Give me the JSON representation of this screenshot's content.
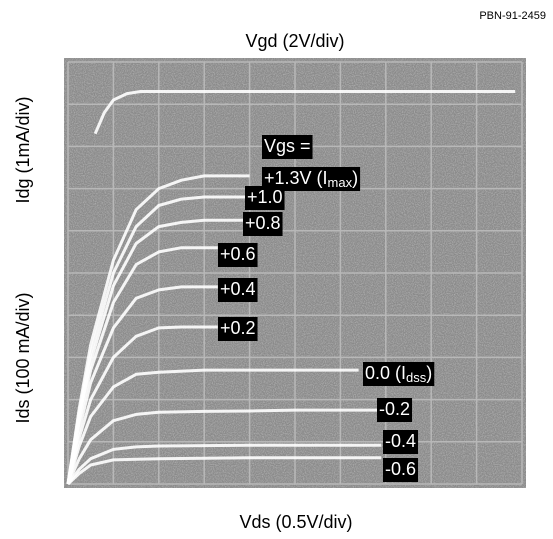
{
  "chart_data": {
    "type": "line",
    "code": "PBN-91-2459",
    "top_axis_label": "Vgd (2V/div)",
    "y_axis_label_upper": "Idg (1mA/div)",
    "y_axis_label_lower": "Ids (100 mA/div)",
    "x_axis_label": "Vds (0.5V/div)",
    "legend_title": "Vgs =",
    "series": [
      {
        "name": "+1.3V (I",
        "name_sub": "max",
        "name_end": ")",
        "color": "#ffffff",
        "x": [
          0,
          0.25,
          0.5,
          1,
          1.5,
          2,
          2.5,
          3,
          4
        ],
        "values": [
          0,
          1.8,
          3.3,
          5.3,
          6.5,
          7.0,
          7.2,
          7.3,
          7.3
        ]
      },
      {
        "name": "+1.0",
        "color": "#ffffff",
        "x": [
          0,
          0.25,
          0.5,
          1,
          1.5,
          2,
          2.5,
          3,
          4
        ],
        "values": [
          0,
          1.7,
          3.1,
          5.0,
          6.1,
          6.6,
          6.75,
          6.8,
          6.8
        ]
      },
      {
        "name": "+0.8",
        "color": "#ffffff",
        "x": [
          0,
          0.25,
          0.5,
          1,
          1.5,
          2,
          2.5,
          3,
          4
        ],
        "values": [
          0,
          1.6,
          2.9,
          4.7,
          5.7,
          6.1,
          6.2,
          6.25,
          6.25
        ]
      },
      {
        "name": "+0.6",
        "color": "#ffffff",
        "x": [
          0,
          0.25,
          0.5,
          1,
          1.5,
          2,
          2.5,
          3.3
        ],
        "values": [
          0,
          1.5,
          2.7,
          4.3,
          5.2,
          5.5,
          5.6,
          5.6
        ]
      },
      {
        "name": "+0.4",
        "color": "#ffffff",
        "x": [
          0,
          0.25,
          0.5,
          1,
          1.5,
          2,
          2.5,
          3.3
        ],
        "values": [
          0,
          1.3,
          2.4,
          3.7,
          4.4,
          4.6,
          4.67,
          4.67
        ]
      },
      {
        "name": "+0.2",
        "color": "#ffffff",
        "x": [
          0,
          0.25,
          0.5,
          1,
          1.5,
          2,
          2.5,
          3.3
        ],
        "values": [
          0,
          1.1,
          2.0,
          3.0,
          3.5,
          3.7,
          3.72,
          3.72
        ]
      },
      {
        "name": "0.0 (I",
        "name_sub": "dss",
        "name_end": ")",
        "color": "#ffffff",
        "x": [
          0,
          0.25,
          0.5,
          1,
          1.5,
          2,
          3,
          4,
          5,
          6.4
        ],
        "values": [
          0,
          0.9,
          1.6,
          2.3,
          2.6,
          2.65,
          2.7,
          2.7,
          2.7,
          2.7
        ]
      },
      {
        "name": "-0.2",
        "color": "#ffffff",
        "x": [
          0,
          0.25,
          0.5,
          1,
          1.5,
          2,
          3,
          4,
          5,
          6.9
        ],
        "values": [
          0,
          0.6,
          1.05,
          1.5,
          1.65,
          1.7,
          1.72,
          1.73,
          1.75,
          1.75
        ]
      },
      {
        "name": "-0.4",
        "color": "#ffffff",
        "x": [
          0,
          0.25,
          0.5,
          1,
          1.5,
          2,
          4,
          6.9
        ],
        "values": [
          0,
          0.35,
          0.6,
          0.82,
          0.88,
          0.9,
          0.92,
          0.92
        ]
      },
      {
        "name": "-0.6",
        "color": "#ffffff",
        "x": [
          0,
          0.25,
          0.5,
          1,
          2,
          4,
          6.9
        ],
        "values": [
          0,
          0.25,
          0.45,
          0.57,
          0.6,
          0.62,
          0.62
        ]
      },
      {
        "color": "#ffffff",
        "x": [
          0.6,
          0.8,
          1.0,
          1.3,
          1.6,
          2,
          3,
          5,
          7,
          9.85
        ],
        "values": [
          8.3,
          8.8,
          9.1,
          9.25,
          9.3,
          9.3,
          9.3,
          9.3,
          9.3,
          9.3
        ]
      }
    ],
    "xlim": [
      0,
      10
    ],
    "ylim": [
      0,
      10
    ]
  }
}
